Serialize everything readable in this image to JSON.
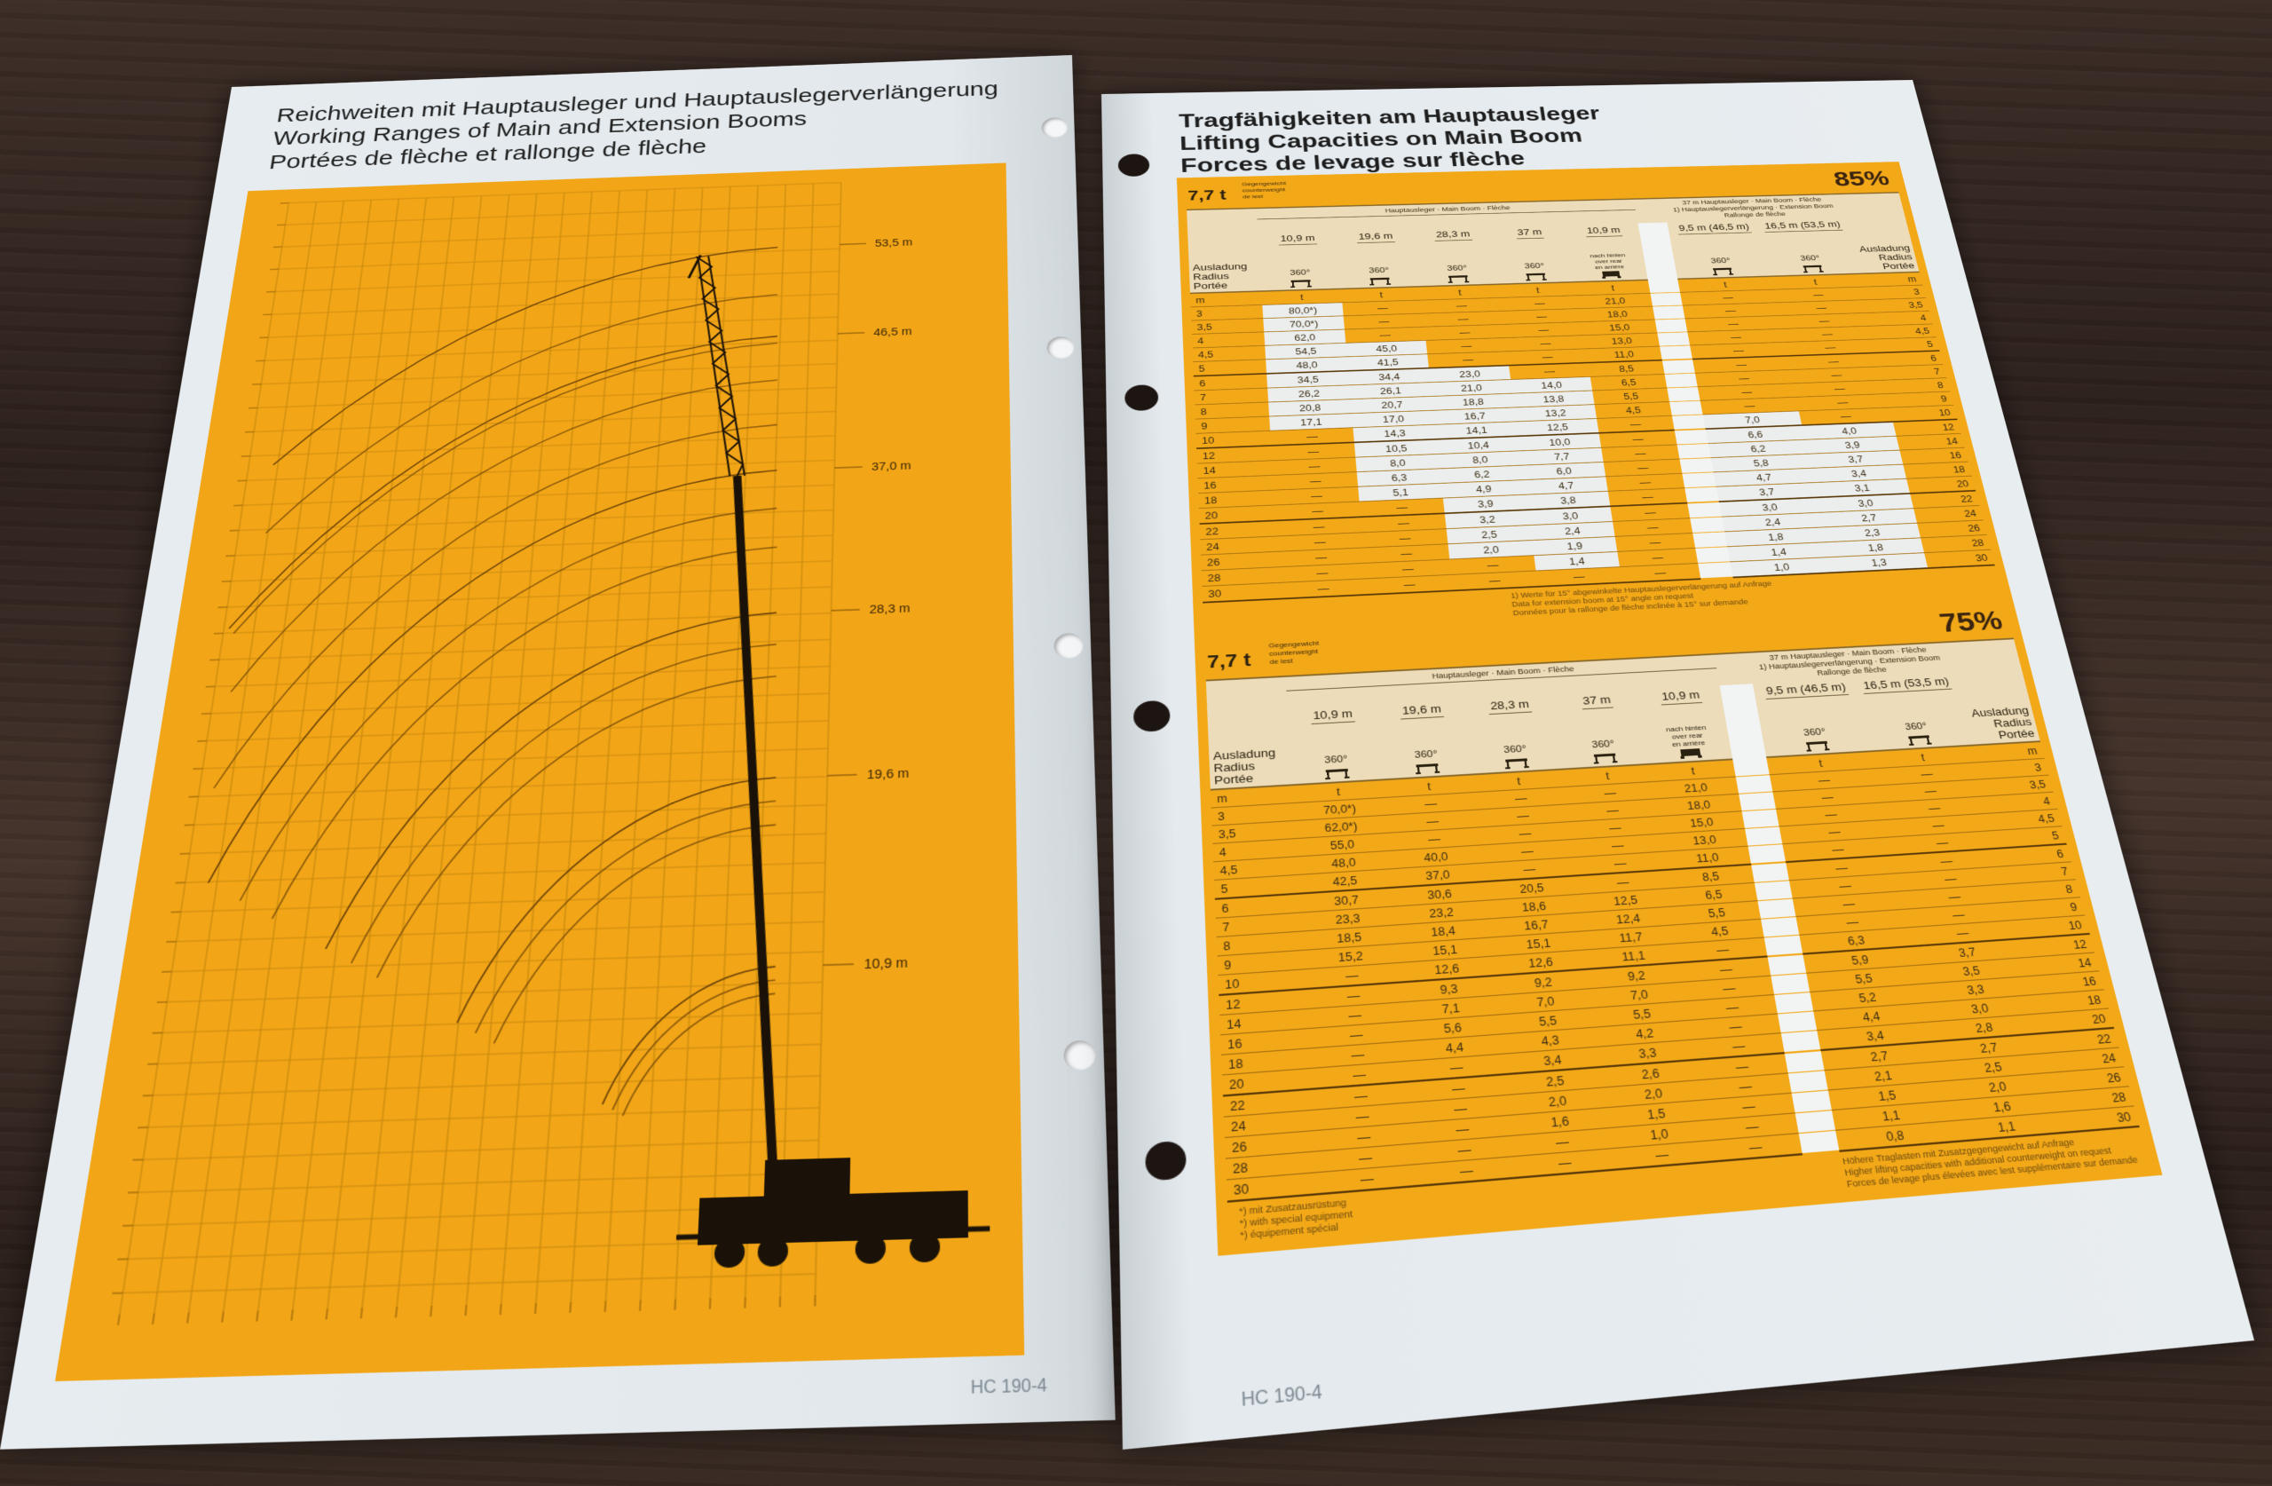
{
  "left_page": {
    "title_lines": [
      "Reichweiten mit Hauptausleger und Hauptauslegerverlängerung",
      "Working Ranges of Main and Extension Booms",
      "Portées de flèche et rallonge de flèche"
    ],
    "boom_labels": [
      "53,5 m",
      "46,5 m",
      "37,0 m",
      "28,3 m",
      "19,6 m",
      "10,9 m"
    ],
    "footer": "HC 190-4"
  },
  "right_page": {
    "title_lines": [
      "Tragfähigkeiten am Hauptausleger",
      "Lifting Capacities on Main Boom",
      "Forces de levage sur flèche"
    ],
    "footer": "HC 190-4",
    "radius_label": [
      "Ausladung",
      "Radius",
      "Portée"
    ],
    "unit_radius": "m",
    "unit_load": "t",
    "group_main": "Hauptausleger · Main Boom · Flèche",
    "group_ext": [
      "37 m Hauptausleger · Main Boom · Flèche",
      "1) Hauptauslegerverlängerung · Extension Boom",
      "Rallonge de flèche"
    ],
    "columns": [
      {
        "length": "10,9 m",
        "slew": "360°"
      },
      {
        "length": "19,6 m",
        "slew": "360°"
      },
      {
        "length": "28,3 m",
        "slew": "360°"
      },
      {
        "length": "37 m",
        "slew": "360°"
      },
      {
        "length": "10,9 m",
        "slew_lines": [
          "nach hinten",
          "over rear",
          "en arrière"
        ]
      },
      {
        "length": "9,5 m (46,5 m)",
        "slew": "360°"
      },
      {
        "length": "16,5 m (53,5 m)",
        "slew": "360°"
      }
    ],
    "radii": [
      "3",
      "3,5",
      "4",
      "4,5",
      "5",
      "6",
      "7",
      "8",
      "9",
      "10",
      "12",
      "14",
      "16",
      "18",
      "20",
      "22",
      "24",
      "26",
      "28",
      "30"
    ],
    "tables": [
      {
        "counterweight": "7,7 t",
        "counterweight_label": [
          "Gegengewicht",
          "counterweight",
          "de lest"
        ],
        "percent": "85%",
        "values": [
          [
            "80,0*)",
            "70,0*)",
            "62,0",
            "54,5",
            "48,0",
            "34,5",
            "26,2",
            "20,8",
            "17,1",
            "—",
            "—",
            "—",
            "—",
            "—",
            "—",
            "—",
            "—",
            "—",
            "—",
            "—"
          ],
          [
            "—",
            "—",
            "—",
            "45,0",
            "41,5",
            "34,4",
            "26,1",
            "20,7",
            "17,0",
            "14,3",
            "10,5",
            "8,0",
            "6,3",
            "5,1",
            "—",
            "—",
            "—",
            "—",
            "—",
            "—"
          ],
          [
            "—",
            "—",
            "—",
            "—",
            "—",
            "23,0",
            "21,0",
            "18,8",
            "16,7",
            "14,1",
            "10,4",
            "8,0",
            "6,2",
            "4,9",
            "3,9",
            "3,2",
            "2,5",
            "2,0",
            "—",
            "—"
          ],
          [
            "—",
            "—",
            "—",
            "—",
            "—",
            "—",
            "14,0",
            "13,8",
            "13,2",
            "12,5",
            "10,0",
            "7,7",
            "6,0",
            "4,7",
            "3,8",
            "3,0",
            "2,4",
            "1,9",
            "1,4",
            "—"
          ],
          [
            "21,0",
            "18,0",
            "15,0",
            "13,0",
            "11,0",
            "8,5",
            "6,5",
            "5,5",
            "4,5",
            "—",
            "—",
            "—",
            "—",
            "—",
            "—",
            "—",
            "—",
            "—",
            "—",
            "—"
          ],
          [
            "—",
            "—",
            "—",
            "—",
            "—",
            "—",
            "—",
            "—",
            "—",
            "7,0",
            "6,6",
            "6,2",
            "5,8",
            "4,7",
            "3,7",
            "3,0",
            "2,4",
            "1,8",
            "1,4",
            "1,0"
          ],
          [
            "—",
            "—",
            "—",
            "—",
            "—",
            "—",
            "—",
            "—",
            "—",
            "—",
            "4,0",
            "3,9",
            "3,7",
            "3,4",
            "3,1",
            "3,0",
            "2,7",
            "2,3",
            "1,8",
            "1,3"
          ]
        ],
        "footnotes": [
          "1) Werte für 15° abgewinkelte Hauptauslegerverlängerung auf Anfrage",
          "Data for extension boom at 15° angle on request",
          "Données pour la rallonge de flèche inclinée à 15° sur demande"
        ]
      },
      {
        "counterweight": "7,7 t",
        "counterweight_label": [
          "Gegengewicht",
          "counterweight",
          "de lest"
        ],
        "percent": "75%",
        "values": [
          [
            "70,0*)",
            "62,0*)",
            "55,0",
            "48,0",
            "42,5",
            "30,7",
            "23,3",
            "18,5",
            "15,2",
            "—",
            "—",
            "—",
            "—",
            "—",
            "—",
            "—",
            "—",
            "—",
            "—",
            "—"
          ],
          [
            "—",
            "—",
            "—",
            "40,0",
            "37,0",
            "30,6",
            "23,2",
            "18,4",
            "15,1",
            "12,6",
            "9,3",
            "7,1",
            "5,6",
            "4,4",
            "—",
            "—",
            "—",
            "—",
            "—",
            "—"
          ],
          [
            "—",
            "—",
            "—",
            "—",
            "—",
            "20,5",
            "18,6",
            "16,7",
            "15,1",
            "12,6",
            "9,2",
            "7,0",
            "5,5",
            "4,3",
            "3,4",
            "2,5",
            "2,0",
            "1,6",
            "—",
            "—"
          ],
          [
            "—",
            "—",
            "—",
            "—",
            "—",
            "—",
            "12,5",
            "12,4",
            "11,7",
            "11,1",
            "9,2",
            "7,0",
            "5,5",
            "4,2",
            "3,3",
            "2,6",
            "2,0",
            "1,5",
            "1,0",
            "—"
          ],
          [
            "21,0",
            "18,0",
            "15,0",
            "13,0",
            "11,0",
            "8,5",
            "6,5",
            "5,5",
            "4,5",
            "—",
            "—",
            "—",
            "—",
            "—",
            "—",
            "—",
            "—",
            "—",
            "—",
            "—"
          ],
          [
            "—",
            "—",
            "—",
            "—",
            "—",
            "—",
            "—",
            "—",
            "—",
            "6,3",
            "5,9",
            "5,5",
            "5,2",
            "4,4",
            "3,4",
            "2,7",
            "2,1",
            "1,5",
            "1,1",
            "0,8"
          ],
          [
            "—",
            "—",
            "—",
            "—",
            "—",
            "—",
            "—",
            "—",
            "—",
            "—",
            "3,7",
            "3,5",
            "3,3",
            "3,0",
            "2,8",
            "2,7",
            "2,5",
            "2,0",
            "1,6",
            "1,1"
          ]
        ],
        "footnotes_left": [
          "*) mit Zusatzausrüstung",
          "*) with special equipment",
          "*) équipement spécial"
        ],
        "footnotes_right": [
          "Höhere Traglasten mit Zusatzgegengewicht auf Anfrage",
          "Higher lifting capacities with additional counterweight on request",
          "Forces de levage plus élevées avec lest supplémentaire sur demande"
        ]
      }
    ]
  },
  "colors": {
    "orange": "#f3a818",
    "paper": "#e4eaee",
    "band": "#ecdcb9",
    "ink": "#2a2010",
    "table": "#1d1512"
  }
}
